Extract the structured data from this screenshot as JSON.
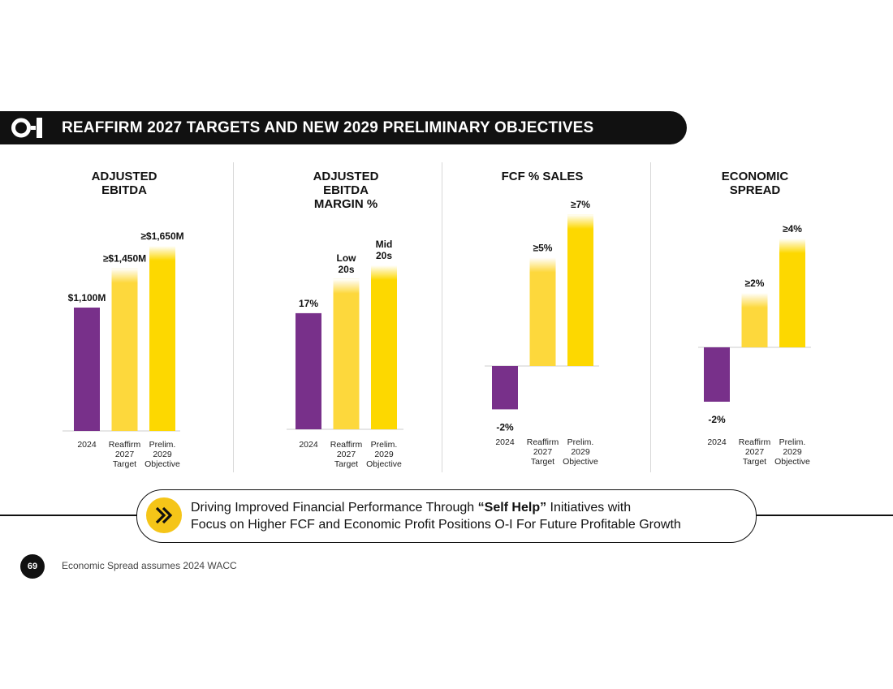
{
  "banner": {
    "logo_text": "O-I",
    "title": "REAFFIRM 2027 TARGETS AND NEW 2029 PRELIMINARY OBJECTIVES"
  },
  "colors": {
    "actual": "#78308a",
    "target": "#fdd83c",
    "objective": "#fdd800",
    "banner": "#111111",
    "axis": "#d8d8d8"
  },
  "chart_data": [
    {
      "type": "bar",
      "title": "ADJUSTED EBITDA",
      "title_lines": [
        "ADJUSTED",
        "EBITDA"
      ],
      "categories": [
        [
          "2024"
        ],
        [
          "Reaffirm",
          "2027",
          "Target"
        ],
        [
          "Prelim.",
          "2029",
          "Objective"
        ]
      ],
      "values": [
        1100,
        1450,
        1650
      ],
      "labels": [
        "$1,100M",
        "≥$1,450M",
        "≥$1,650M"
      ],
      "units": "$M",
      "ylim": [
        0,
        1650
      ]
    },
    {
      "type": "bar",
      "title": "ADJUSTED EBITDA MARGIN %",
      "title_lines": [
        "ADJUSTED",
        "EBITDA",
        "MARGIN %"
      ],
      "categories": [
        [
          "2024"
        ],
        [
          "Reaffirm",
          "2027",
          "Target"
        ],
        [
          "Prelim.",
          "2029",
          "Objective"
        ]
      ],
      "values": [
        17,
        22,
        24
      ],
      "labels": [
        "17%",
        "Low 20s",
        "Mid 20s"
      ],
      "label_lines": [
        [
          "17%"
        ],
        [
          "Low",
          "20s"
        ],
        [
          "Mid",
          "20s"
        ]
      ],
      "units": "%",
      "ylim": [
        0,
        24
      ]
    },
    {
      "type": "bar",
      "title": "FCF % SALES",
      "title_lines": [
        "FCF % SALES"
      ],
      "categories": [
        [
          "2024"
        ],
        [
          "Reaffirm",
          "2027",
          "Target"
        ],
        [
          "Prelim.",
          "2029",
          "Objective"
        ]
      ],
      "values": [
        -2,
        5,
        7
      ],
      "labels": [
        "-2%",
        "≥5%",
        "≥7%"
      ],
      "units": "%",
      "ylim": [
        -2,
        7
      ]
    },
    {
      "type": "bar",
      "title": "ECONOMIC SPREAD",
      "title_lines": [
        "ECONOMIC",
        "SPREAD"
      ],
      "categories": [
        [
          "2024"
        ],
        [
          "Reaffirm",
          "2027",
          "Target"
        ],
        [
          "Prelim.",
          "2029",
          "Objective"
        ]
      ],
      "values": [
        -2,
        2,
        4
      ],
      "labels": [
        "-2%",
        "≥2%",
        "≥4%"
      ],
      "units": "%",
      "ylim": [
        -2,
        4
      ]
    }
  ],
  "message": {
    "line1_pre": "Driving Improved Financial Performance Through ",
    "line1_bold": "“Self Help”",
    "line1_post": " Initiatives with",
    "line2": "Focus on Higher FCF and Economic Profit Positions O-I For Future Profitable Growth"
  },
  "footer": {
    "page_number": "69",
    "footnote": "Economic Spread assumes 2024 WACC"
  }
}
